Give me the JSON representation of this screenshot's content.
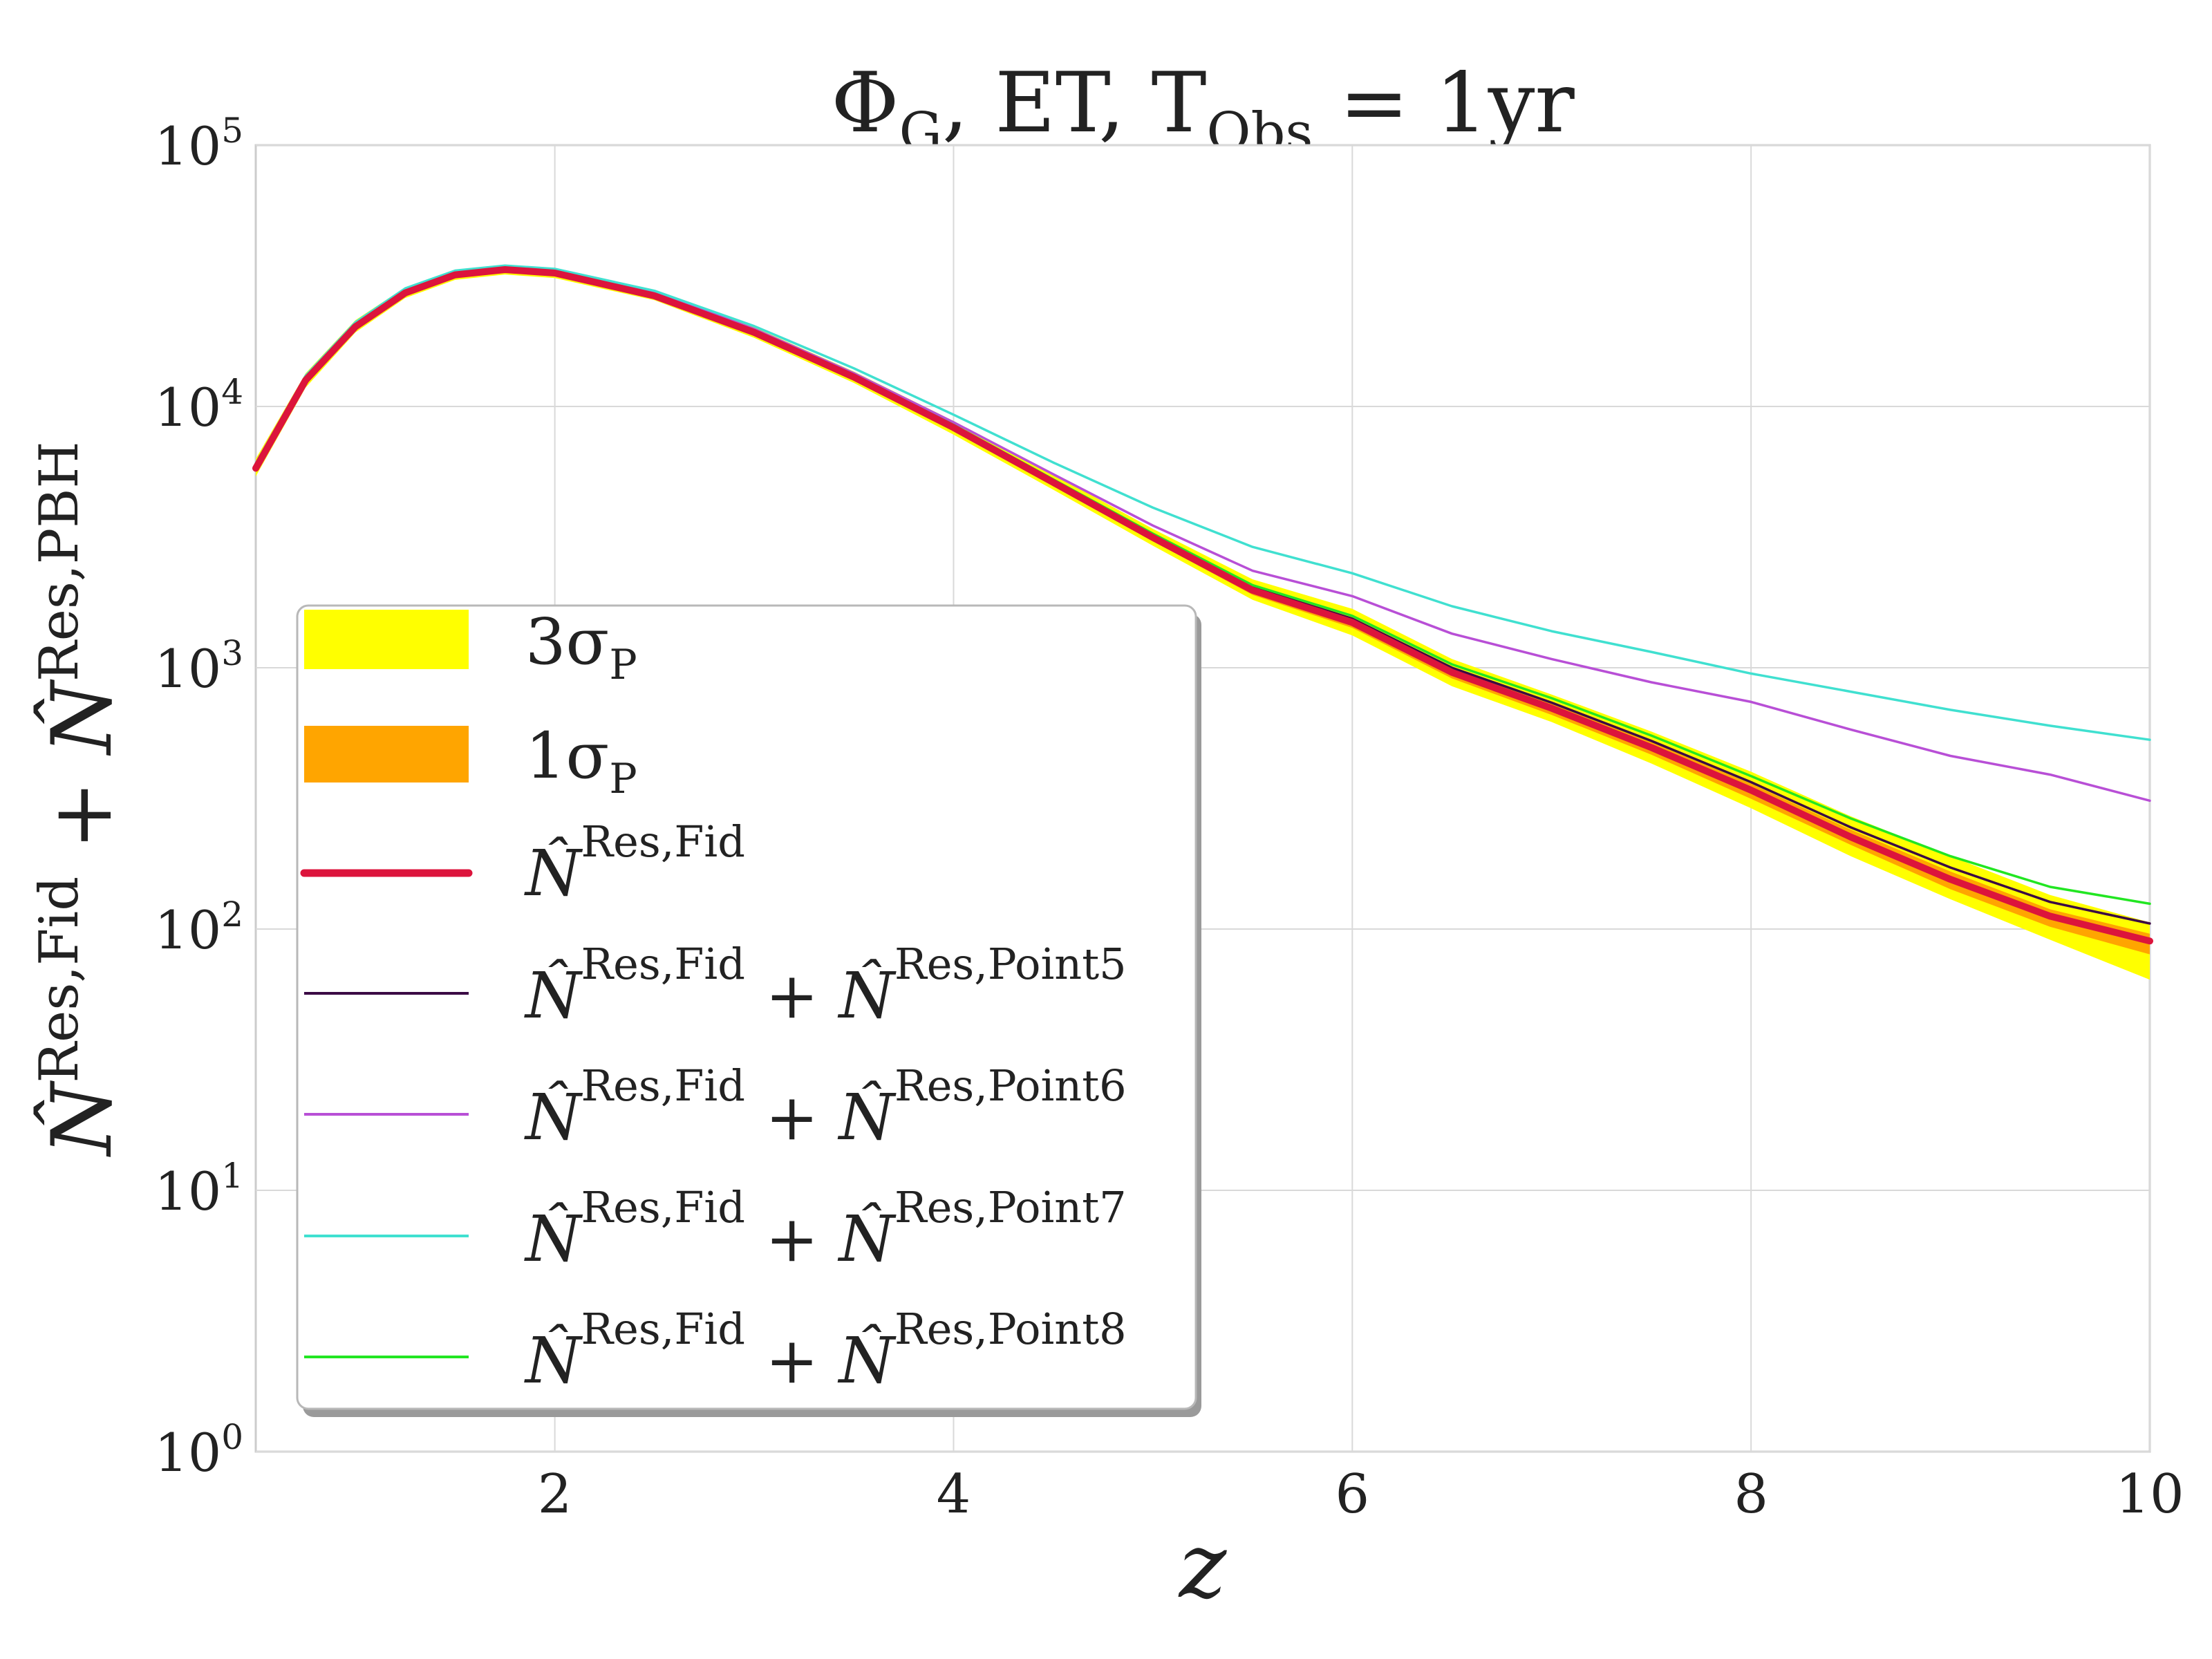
{
  "chart_data": {
    "type": "line",
    "title": {
      "base": "Φ",
      "sub": "G",
      "mid": ", ET, T",
      "sub2": "Obs",
      "rest": " = 1yr"
    },
    "xlabel": "z",
    "ylabel": {
      "n1": "N̂",
      "s1": "Res,Fid",
      "plus": " + ",
      "n2": "N̂",
      "s2": "Res,PBH"
    },
    "xlim": [
      0.5,
      10
    ],
    "ylim_log10": [
      0,
      5
    ],
    "yscale": "log",
    "grid": true,
    "legend_position": "lower-left",
    "x_ticks": [
      {
        "value": 2,
        "label": "2"
      },
      {
        "value": 4,
        "label": "4"
      },
      {
        "value": 6,
        "label": "6"
      },
      {
        "value": 8,
        "label": "8"
      },
      {
        "value": 10,
        "label": "10"
      }
    ],
    "y_ticks": [
      {
        "exp": 0,
        "base": "10",
        "sup": "0"
      },
      {
        "exp": 1,
        "base": "10",
        "sup": "1"
      },
      {
        "exp": 2,
        "base": "10",
        "sup": "2"
      },
      {
        "exp": 3,
        "base": "10",
        "sup": "3"
      },
      {
        "exp": 4,
        "base": "10",
        "sup": "4"
      },
      {
        "exp": 5,
        "base": "10",
        "sup": "5"
      }
    ],
    "x": [
      0.5,
      0.75,
      1.0,
      1.25,
      1.5,
      1.75,
      2.0,
      2.5,
      3.0,
      3.5,
      4.0,
      4.5,
      5.0,
      5.5,
      6.0,
      6.5,
      7.0,
      7.5,
      8.0,
      8.5,
      9.0,
      9.5,
      10.0
    ],
    "bands": [
      {
        "name": "3σ_P",
        "label": "3σ",
        "sub": "P",
        "color": "#ffff00",
        "lower": [
          5400,
          11800,
          19200,
          26000,
          30500,
          32000,
          31000,
          25500,
          18300,
          12300,
          7800,
          4800,
          2930,
          1820,
          1330,
          850,
          620,
          430,
          290,
          190,
          130,
          91,
          64
        ],
        "upper": [
          6300,
          13400,
          21400,
          28600,
          33400,
          34900,
          33900,
          27800,
          20100,
          13600,
          8800,
          5500,
          3400,
          2180,
          1680,
          1080,
          790,
          570,
          400,
          270,
          190,
          135,
          106
        ]
      },
      {
        "name": "1σ_P",
        "label": "1σ",
        "sub": "P",
        "color": "#ffa500",
        "lower": [
          5650,
          12300,
          19800,
          26700,
          31300,
          32800,
          31800,
          26100,
          18900,
          12700,
          8150,
          5000,
          3050,
          1900,
          1420,
          910,
          660,
          465,
          315,
          210,
          142,
          102,
          80
        ],
        "upper": [
          6000,
          12900,
          20700,
          27800,
          32500,
          34000,
          33000,
          27000,
          19500,
          13200,
          8500,
          5250,
          3250,
          2050,
          1560,
          1000,
          730,
          520,
          360,
          240,
          166,
          119,
          96
        ]
      }
    ],
    "series": [
      {
        "name": "N̂^{Res,Fid}",
        "n1": "N̂",
        "s1": "Res,Fid",
        "color": "#dc143c",
        "width": 10,
        "values": [
          5800,
          12600,
          20200,
          27200,
          31900,
          33400,
          32400,
          26500,
          19200,
          12950,
          8300,
          5120,
          3150,
          1980,
          1490,
          960,
          700,
          495,
          340,
          225,
          155,
          112,
          90
        ]
      },
      {
        "name": "N̂^{Res,Fid} + N̂^{Res,Point5}",
        "n1": "N̂",
        "s1": "Res,Fid",
        "n2": "N̂",
        "s2": "Res,Point5",
        "color": "#3b0a45",
        "width": 3.5,
        "values": [
          5900,
          12800,
          20500,
          27600,
          32300,
          33800,
          32800,
          26900,
          19500,
          13150,
          8450,
          5220,
          3220,
          2030,
          1540,
          1000,
          735,
          525,
          365,
          245,
          172,
          127,
          105
        ]
      },
      {
        "name": "N̂^{Res,Fid} + N̂^{Res,Point6}",
        "n1": "N̂",
        "s1": "Res,Fid",
        "n2": "N̂",
        "s2": "Res,Point6",
        "color": "#b84fd6",
        "width": 3.5,
        "values": [
          6000,
          13000,
          20800,
          28000,
          32800,
          34300,
          33300,
          27300,
          19800,
          13400,
          8700,
          5500,
          3500,
          2350,
          1880,
          1350,
          1080,
          880,
          740,
          580,
          460,
          390,
          310
        ]
      },
      {
        "name": "N̂^{Res,Fid} + N̂^{Res,Point7}",
        "n1": "N̂",
        "s1": "Res,Fid",
        "n2": "N̂",
        "s2": "Res,Point7",
        "color": "#40e0d0",
        "width": 3.5,
        "values": [
          6050,
          13100,
          21000,
          28300,
          33100,
          34600,
          33600,
          27700,
          20300,
          14000,
          9300,
          6100,
          4100,
          2900,
          2300,
          1720,
          1380,
          1150,
          950,
          810,
          690,
          600,
          530
        ]
      },
      {
        "name": "N̂^{Res,Fid} + N̂^{Res,Point8}",
        "n1": "N̂",
        "s1": "Res,Fid",
        "n2": "N̂",
        "s2": "Res,Point8",
        "color": "#22e622",
        "width": 3.5,
        "values": [
          5950,
          12900,
          20600,
          27700,
          32400,
          33900,
          32900,
          26950,
          19550,
          13200,
          8500,
          5260,
          3260,
          2070,
          1580,
          1030,
          765,
          550,
          385,
          265,
          190,
          145,
          125
        ]
      }
    ]
  }
}
